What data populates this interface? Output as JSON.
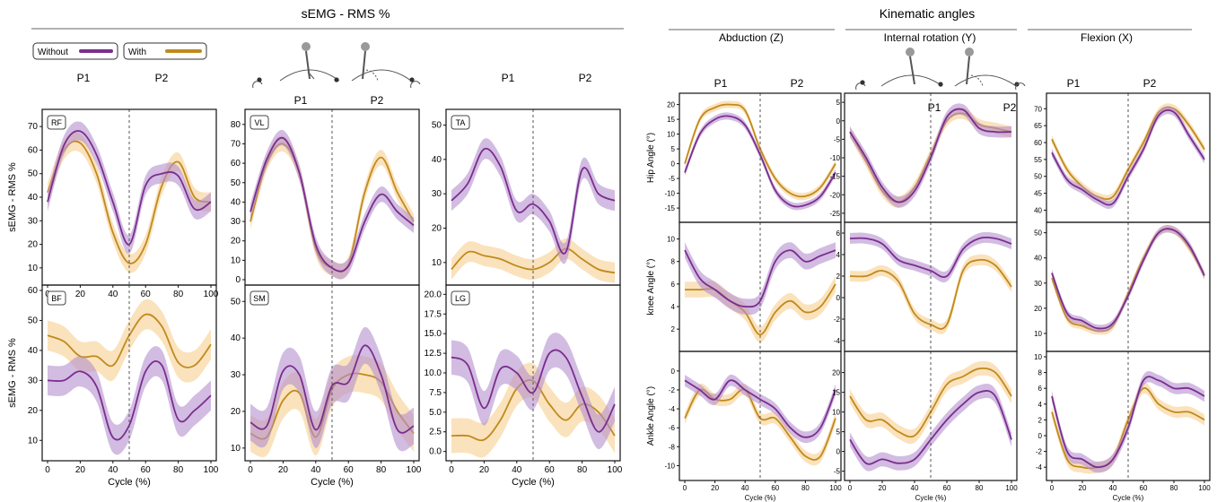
{
  "figure": {
    "left_title": "sEMG  -  RMS %",
    "right_title": "Kinematic angles",
    "right_sections": [
      "Abduction (Z)",
      "Internal rotation (Y)",
      "Flexion (X)"
    ],
    "legend": [
      {
        "label": "Without",
        "color": "#7b2d8e"
      },
      {
        "label": "With",
        "color": "#c08a1c"
      }
    ],
    "phase_labels": [
      "P1",
      "P2"
    ],
    "colors": {
      "without": "#7b2d8e",
      "with": "#c08a1c",
      "without_band": "#b48fcf",
      "with_band": "#f7cf8f"
    }
  },
  "chart_data": [
    {
      "type": "line",
      "panel": "RF",
      "ylabel": "sEMG - RMS %",
      "ylim": [
        5,
        75
      ],
      "yticks": [
        10,
        20,
        30,
        40,
        50,
        60,
        70
      ],
      "xlabel": "",
      "xticks": [
        0,
        20,
        40,
        60,
        80,
        100
      ],
      "x": [
        0,
        10,
        20,
        30,
        40,
        50,
        60,
        70,
        80,
        90,
        100
      ],
      "series": [
        {
          "name": "Without",
          "values": [
            38,
            62,
            68,
            58,
            38,
            20,
            45,
            50,
            49,
            35,
            38
          ]
        },
        {
          "name": "With",
          "values": [
            42,
            60,
            63,
            50,
            25,
            12,
            20,
            45,
            55,
            40,
            38
          ]
        }
      ]
    },
    {
      "type": "line",
      "panel": "VL",
      "ylabel": "",
      "ylim": [
        0,
        85
      ],
      "yticks": [
        0,
        10,
        20,
        30,
        40,
        50,
        60,
        70,
        80
      ],
      "xlabel": "",
      "xticks": [],
      "x": [
        0,
        10,
        20,
        30,
        40,
        50,
        60,
        70,
        80,
        90,
        100
      ],
      "series": [
        {
          "name": "Without",
          "values": [
            35,
            62,
            73,
            55,
            18,
            6,
            7,
            30,
            44,
            35,
            28
          ]
        },
        {
          "name": "With",
          "values": [
            30,
            60,
            70,
            55,
            16,
            6,
            8,
            45,
            63,
            45,
            30
          ]
        }
      ]
    },
    {
      "type": "line",
      "panel": "TA",
      "ylabel": "",
      "ylim": [
        5,
        53
      ],
      "yticks": [
        10,
        20,
        30,
        40,
        50
      ],
      "xlabel": "",
      "xticks": [],
      "x": [
        0,
        10,
        20,
        30,
        40,
        50,
        60,
        70,
        80,
        90,
        100
      ],
      "series": [
        {
          "name": "Without",
          "values": [
            28,
            33,
            43,
            38,
            25,
            27,
            22,
            13,
            37,
            30,
            28
          ]
        },
        {
          "name": "With",
          "values": [
            8,
            13,
            12,
            11,
            9,
            8,
            10,
            14,
            11,
            8,
            7
          ]
        }
      ]
    },
    {
      "type": "line",
      "panel": "BF",
      "ylabel": "sEMG - RMS %",
      "ylim": [
        5,
        60
      ],
      "yticks": [
        10,
        20,
        30,
        40,
        50,
        60
      ],
      "xlabel": "Cycle (%)",
      "xticks": [
        0,
        20,
        40,
        60,
        80,
        100
      ],
      "x": [
        0,
        10,
        20,
        30,
        40,
        50,
        60,
        70,
        80,
        90,
        100
      ],
      "series": [
        {
          "name": "Without",
          "values": [
            30,
            30,
            33,
            28,
            11,
            15,
            33,
            35,
            17,
            20,
            25
          ]
        },
        {
          "name": "With",
          "values": [
            45,
            43,
            38,
            38,
            35,
            45,
            52,
            48,
            36,
            35,
            42
          ]
        }
      ]
    },
    {
      "type": "line",
      "panel": "SM",
      "ylabel": "",
      "ylim": [
        8,
        53
      ],
      "yticks": [
        10,
        20,
        30,
        40,
        50
      ],
      "xlabel": "Cycle (%)",
      "xticks": [
        0,
        20,
        40,
        60,
        80,
        100
      ],
      "x": [
        0,
        10,
        20,
        30,
        40,
        50,
        60,
        70,
        80,
        90,
        100
      ],
      "series": [
        {
          "name": "Without",
          "values": [
            17,
            16,
            31,
            30,
            15,
            27,
            28,
            38,
            30,
            15,
            16
          ]
        },
        {
          "name": "With",
          "values": [
            14,
            13,
            23,
            25,
            13,
            26,
            30,
            30,
            28,
            20,
            14
          ]
        }
      ]
    },
    {
      "type": "line",
      "panel": "LG",
      "ylabel": "",
      "ylim": [
        -0.5,
        20.5
      ],
      "yticks": [
        0.0,
        2.5,
        5.0,
        7.5,
        10.0,
        12.5,
        15.0,
        17.5,
        20.0
      ],
      "xlabel": "Cycle (%)",
      "xticks": [
        0,
        20,
        40,
        60,
        80,
        100
      ],
      "x": [
        0,
        10,
        20,
        30,
        40,
        50,
        60,
        70,
        80,
        90,
        100
      ],
      "series": [
        {
          "name": "Without",
          "values": [
            12,
            11,
            5.5,
            10.5,
            10,
            7.5,
            12.5,
            12,
            7,
            2.5,
            6
          ]
        },
        {
          "name": "With",
          "values": [
            2,
            2,
            1.5,
            4,
            8,
            9,
            6,
            4,
            6,
            5,
            2
          ]
        }
      ]
    },
    {
      "type": "line",
      "panel": "hip-abduction",
      "ylabel": "Hip Angle (°)",
      "ylim": [
        -18,
        22
      ],
      "yticks": [
        -15,
        -10,
        -5,
        0,
        5,
        10,
        15,
        20
      ],
      "xlabel": "",
      "xticks": [],
      "x": [
        0,
        10,
        20,
        30,
        40,
        50,
        60,
        70,
        80,
        90,
        100
      ],
      "series": [
        {
          "name": "Without",
          "values": [
            -3,
            10,
            15,
            16,
            13,
            3,
            -9,
            -14,
            -14,
            -11,
            -3
          ]
        },
        {
          "name": "With",
          "values": [
            0,
            15,
            19,
            20,
            18,
            5,
            -5,
            -10,
            -11,
            -8,
            0
          ]
        }
      ]
    },
    {
      "type": "line",
      "panel": "hip-internal-rotation",
      "ylabel": "",
      "ylim": [
        -26,
        6
      ],
      "yticks": [
        -25,
        -20,
        -15,
        -10,
        -5,
        0,
        5
      ],
      "xlabel": "",
      "xticks": [],
      "x": [
        0,
        10,
        20,
        30,
        40,
        50,
        60,
        70,
        80,
        90,
        100
      ],
      "series": [
        {
          "name": "Without",
          "values": [
            -3,
            -10,
            -18,
            -22,
            -19,
            -10,
            1,
            3,
            -2,
            -3,
            -3
          ]
        },
        {
          "name": "With",
          "values": [
            -3,
            -11,
            -19,
            -22,
            -18,
            -9,
            0,
            2,
            -1,
            -2,
            -3
          ]
        }
      ]
    },
    {
      "type": "line",
      "panel": "hip-flexion",
      "ylabel": "",
      "ylim": [
        38,
        73
      ],
      "yticks": [
        40,
        45,
        50,
        55,
        60,
        65,
        70
      ],
      "xlabel": "",
      "xticks": [],
      "x": [
        0,
        10,
        20,
        30,
        40,
        50,
        60,
        70,
        80,
        90,
        100
      ],
      "series": [
        {
          "name": "Without",
          "values": [
            57,
            49,
            46,
            43,
            42,
            50,
            58,
            68,
            69,
            62,
            55
          ]
        },
        {
          "name": "With",
          "values": [
            61,
            52,
            47,
            44,
            44,
            52,
            60,
            69,
            70,
            65,
            58
          ]
        }
      ]
    },
    {
      "type": "line",
      "panel": "knee-abduction",
      "ylabel": "knee  Angle (°)",
      "ylim": [
        0.5,
        11
      ],
      "yticks": [
        2,
        4,
        6,
        8,
        10
      ],
      "xlabel": "",
      "xticks": [],
      "x": [
        0,
        10,
        20,
        30,
        40,
        50,
        60,
        70,
        80,
        90,
        100
      ],
      "series": [
        {
          "name": "Without",
          "values": [
            9,
            6.5,
            5.5,
            4.5,
            4,
            4.5,
            8,
            9,
            8,
            8.5,
            9
          ]
        },
        {
          "name": "With",
          "values": [
            5.5,
            5.5,
            5.5,
            4.5,
            3.5,
            1.5,
            3.5,
            4.5,
            3.5,
            4,
            6
          ]
        }
      ]
    },
    {
      "type": "line",
      "panel": "knee-internal-rotation",
      "ylabel": "",
      "ylim": [
        -4.5,
        6.5
      ],
      "yticks": [
        -4,
        -2,
        0,
        2,
        4,
        6
      ],
      "xlabel": "",
      "xticks": [],
      "x": [
        0,
        10,
        20,
        30,
        40,
        50,
        60,
        70,
        80,
        90,
        100
      ],
      "series": [
        {
          "name": "Without",
          "values": [
            5.5,
            5.5,
            5,
            3.5,
            3,
            2.5,
            2,
            4.5,
            5.5,
            5.5,
            5
          ]
        },
        {
          "name": "With",
          "values": [
            2,
            2,
            2.5,
            1.5,
            -1.5,
            -2.5,
            -2.5,
            2.5,
            3.5,
            3,
            1
          ]
        }
      ]
    },
    {
      "type": "line",
      "panel": "knee-flexion",
      "ylabel": "",
      "ylim": [
        5,
        52
      ],
      "yticks": [
        10,
        20,
        30,
        40,
        50
      ],
      "xlabel": "",
      "xticks": [],
      "x": [
        0,
        10,
        20,
        30,
        40,
        50,
        60,
        70,
        80,
        90,
        100
      ],
      "series": [
        {
          "name": "Without",
          "values": [
            34,
            18,
            15,
            12,
            14,
            25,
            39,
            50,
            51,
            45,
            33
          ]
        },
        {
          "name": "With",
          "values": [
            32,
            16,
            13,
            11,
            13,
            26,
            40,
            50,
            51,
            44,
            33
          ]
        }
      ]
    },
    {
      "type": "line",
      "panel": "ankle-abduction",
      "ylabel": "Ankle  Angle (°)",
      "ylim": [
        -11,
        1.5
      ],
      "yticks": [
        -10,
        -8,
        -6,
        -4,
        -2,
        0
      ],
      "xlabel": "Cycle (%)",
      "xticks": [
        0,
        20,
        40,
        60,
        80,
        100
      ],
      "x": [
        0,
        10,
        20,
        30,
        40,
        50,
        60,
        70,
        80,
        90,
        100
      ],
      "series": [
        {
          "name": "Without",
          "values": [
            -1,
            -2,
            -3,
            -1,
            -2,
            -3,
            -4,
            -6,
            -7,
            -6,
            -2
          ]
        },
        {
          "name": "With",
          "values": [
            -5,
            -2,
            -3,
            -3,
            -2,
            -5,
            -5,
            -7,
            -9,
            -9,
            -5
          ]
        }
      ]
    },
    {
      "type": "line",
      "panel": "ankle-internal-rotation",
      "ylabel": "",
      "ylim": [
        -6,
        24
      ],
      "yticks": [
        -5,
        0,
        5,
        10,
        15,
        20
      ],
      "xlabel": "Cycle (%)",
      "xticks": [
        0,
        20,
        40,
        60,
        80,
        100
      ],
      "x": [
        0,
        10,
        20,
        30,
        40,
        50,
        60,
        70,
        80,
        90,
        100
      ],
      "series": [
        {
          "name": "Without",
          "values": [
            3,
            -3,
            -2,
            -3,
            -2,
            3,
            8,
            12,
            15,
            14,
            3
          ]
        },
        {
          "name": "With",
          "values": [
            14,
            8,
            8,
            5,
            4,
            10,
            17,
            19,
            21,
            20,
            14
          ]
        }
      ]
    },
    {
      "type": "line",
      "panel": "ankle-flexion",
      "ylabel": "",
      "ylim": [
        -5,
        10
      ],
      "yticks": [
        -4,
        -2,
        0,
        2,
        4,
        6,
        8,
        10
      ],
      "xlabel": "Cycle (%)",
      "xticks": [
        0,
        20,
        40,
        60,
        80,
        100
      ],
      "x": [
        0,
        10,
        20,
        30,
        40,
        50,
        60,
        70,
        80,
        90,
        100
      ],
      "series": [
        {
          "name": "Without",
          "values": [
            5,
            -2,
            -3,
            -4,
            -3,
            1,
            7,
            7,
            6,
            6,
            5
          ]
        },
        {
          "name": "With",
          "values": [
            3,
            -3,
            -4,
            -4,
            -3,
            2,
            6,
            4,
            3,
            3,
            2
          ]
        }
      ]
    }
  ]
}
